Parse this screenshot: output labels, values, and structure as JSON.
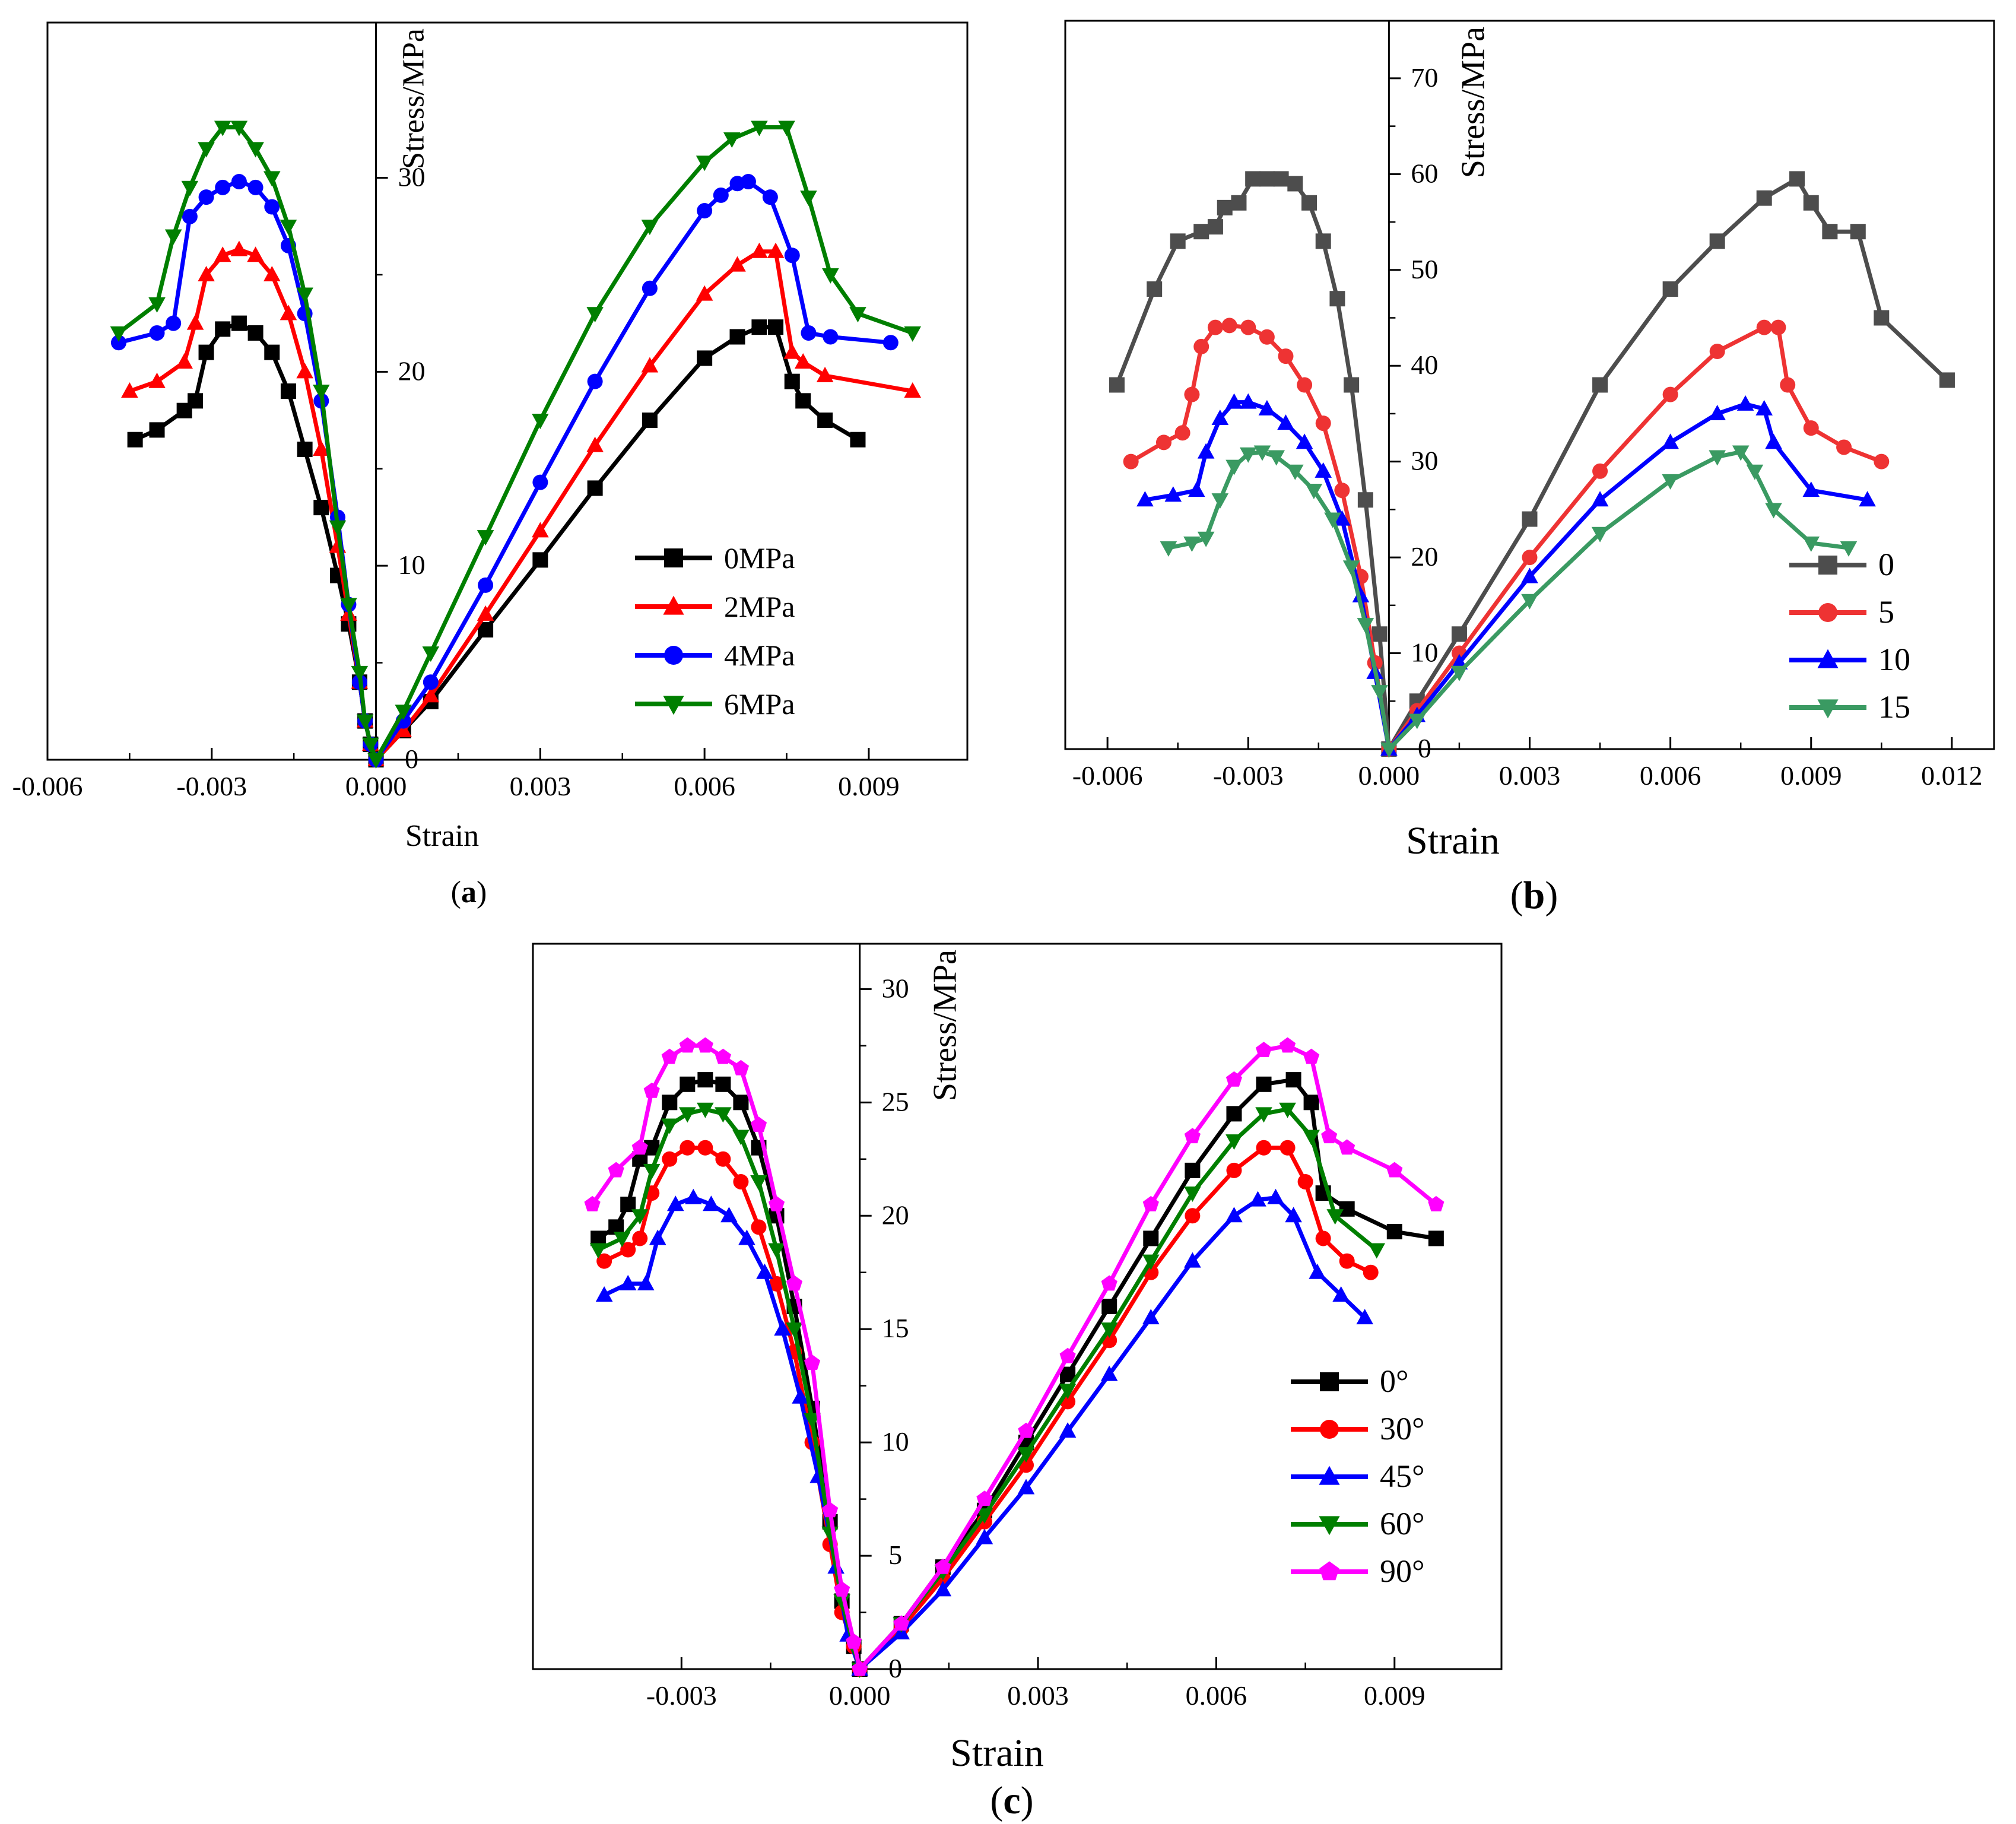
{
  "chart_data": [
    {
      "id": "a",
      "type": "line",
      "panel_label": "a",
      "xlabel": "Strain",
      "ylabel": "Stress/MPa",
      "xlim": [
        -0.006,
        0.0108
      ],
      "ylim": [
        0,
        38
      ],
      "x_ticks": [
        -0.006,
        -0.003,
        0.0,
        0.003,
        0.006,
        0.009
      ],
      "x_tick_labels": [
        "-0.006",
        "-0.003",
        "0.000",
        "0.003",
        "0.006",
        "0.009"
      ],
      "y_ticks": [
        0,
        10,
        20,
        30
      ],
      "y_tick_labels": [
        "0",
        "10",
        "20",
        "30"
      ],
      "legend_position": "center-right",
      "series": [
        {
          "name": "0MPa",
          "color": "#000000",
          "marker": "square",
          "x": [
            -0.0044,
            -0.004,
            -0.0035,
            -0.0033,
            -0.0031,
            -0.0028,
            -0.0025,
            -0.0022,
            -0.0019,
            -0.0016,
            -0.0013,
            -0.001,
            -0.0007,
            -0.0005,
            -0.0003,
            -0.0002,
            -0.0001,
            0.0,
            0.0005,
            0.001,
            0.002,
            0.003,
            0.004,
            0.005,
            0.006,
            0.0066,
            0.007,
            0.0073,
            0.0076,
            0.0078,
            0.0082,
            0.0088
          ],
          "y": [
            16.5,
            17.0,
            18.0,
            18.5,
            21.0,
            22.2,
            22.5,
            22.0,
            21.0,
            19.0,
            16.0,
            13.0,
            9.5,
            7.0,
            4.0,
            2.0,
            0.8,
            0.0,
            1.5,
            3.0,
            6.7,
            10.3,
            14.0,
            17.5,
            20.7,
            21.8,
            22.3,
            22.3,
            19.5,
            18.5,
            17.5,
            16.5
          ]
        },
        {
          "name": "2MPa",
          "color": "#ff0000",
          "marker": "triangle-up",
          "x": [
            -0.0045,
            -0.004,
            -0.0035,
            -0.0033,
            -0.0031,
            -0.0028,
            -0.0025,
            -0.0022,
            -0.0019,
            -0.0016,
            -0.0013,
            -0.001,
            -0.0007,
            -0.0005,
            -0.0003,
            -0.0002,
            -0.0001,
            0.0,
            0.0005,
            0.001,
            0.002,
            0.003,
            0.004,
            0.005,
            0.006,
            0.0066,
            0.007,
            0.0073,
            0.0076,
            0.0078,
            0.0082,
            0.0098
          ],
          "y": [
            19.0,
            19.5,
            20.5,
            22.5,
            25.0,
            26.0,
            26.3,
            26.0,
            25.0,
            23.0,
            20.0,
            16.0,
            11.0,
            7.5,
            4.0,
            2.0,
            0.8,
            0.0,
            1.5,
            3.3,
            7.5,
            11.8,
            16.2,
            20.3,
            24.0,
            25.5,
            26.2,
            26.2,
            21.0,
            20.5,
            19.8,
            19.0
          ]
        },
        {
          "name": "4MPa",
          "color": "#0000ff",
          "marker": "circle",
          "x": [
            -0.0047,
            -0.004,
            -0.0037,
            -0.0034,
            -0.0031,
            -0.0028,
            -0.0025,
            -0.0022,
            -0.0019,
            -0.0016,
            -0.0013,
            -0.001,
            -0.0007,
            -0.0005,
            -0.0003,
            -0.0002,
            -0.0001,
            0.0,
            0.0005,
            0.001,
            0.002,
            0.003,
            0.004,
            0.005,
            0.006,
            0.0063,
            0.0066,
            0.0068,
            0.0072,
            0.0076,
            0.0079,
            0.0083,
            0.0094
          ],
          "y": [
            21.5,
            22.0,
            22.5,
            28.0,
            29.0,
            29.5,
            29.8,
            29.5,
            28.5,
            26.5,
            23.0,
            18.5,
            12.5,
            8.0,
            4.0,
            2.0,
            0.8,
            0.0,
            2.0,
            4.0,
            9.0,
            14.3,
            19.5,
            24.3,
            28.3,
            29.1,
            29.7,
            29.8,
            29.0,
            26.0,
            22.0,
            21.8,
            21.5
          ]
        },
        {
          "name": "6MPa",
          "color": "#007f00",
          "marker": "triangle-down",
          "x": [
            -0.0047,
            -0.004,
            -0.0037,
            -0.0034,
            -0.0031,
            -0.0028,
            -0.0025,
            -0.0022,
            -0.0019,
            -0.0016,
            -0.0013,
            -0.001,
            -0.0007,
            -0.0005,
            -0.0003,
            -0.0002,
            -0.0001,
            0.0,
            0.0005,
            0.001,
            0.002,
            0.003,
            0.004,
            0.005,
            0.006,
            0.0065,
            0.007,
            0.0075,
            0.0079,
            0.0083,
            0.0088,
            0.0098
          ],
          "y": [
            22.0,
            23.5,
            27.0,
            29.5,
            31.5,
            32.6,
            32.6,
            31.5,
            30.0,
            27.5,
            24.0,
            19.0,
            12.0,
            8.0,
            4.5,
            2.0,
            0.8,
            0.0,
            2.5,
            5.5,
            11.5,
            17.5,
            23.0,
            27.5,
            30.8,
            32.0,
            32.6,
            32.6,
            29.0,
            25.0,
            23.0,
            22.0
          ]
        }
      ]
    },
    {
      "id": "b",
      "type": "line",
      "panel_label": "b",
      "xlabel": "Strain",
      "ylabel": "Stress/MPa",
      "xlim": [
        -0.0069,
        0.0129
      ],
      "ylim": [
        0,
        76
      ],
      "x_ticks": [
        -0.006,
        -0.003,
        0.0,
        0.003,
        0.006,
        0.009,
        0.012
      ],
      "x_tick_labels": [
        "-0.006",
        "-0.003",
        "0.000",
        "0.003",
        "0.006",
        "0.009",
        "0.012"
      ],
      "y_ticks": [
        0,
        10,
        20,
        30,
        40,
        50,
        60,
        70
      ],
      "y_tick_labels": [
        "0",
        "10",
        "20",
        "30",
        "40",
        "50",
        "60",
        "70"
      ],
      "legend_position": "bottom-right",
      "series": [
        {
          "name": "0",
          "color": "#4d4d4d",
          "marker": "square",
          "x": [
            -0.0058,
            -0.005,
            -0.0045,
            -0.004,
            -0.0037,
            -0.0035,
            -0.0032,
            -0.0029,
            -0.0026,
            -0.0023,
            -0.002,
            -0.0017,
            -0.0014,
            -0.0011,
            -0.0008,
            -0.0005,
            -0.0002,
            0.0,
            0.0006,
            0.0015,
            0.003,
            0.0045,
            0.006,
            0.007,
            0.008,
            0.0087,
            0.009,
            0.0094,
            0.01,
            0.0105,
            0.0119
          ],
          "y": [
            38.0,
            48.0,
            53.0,
            54.0,
            54.5,
            56.5,
            57.0,
            59.5,
            59.5,
            59.5,
            59.0,
            57.0,
            53.0,
            47.0,
            38.0,
            26.0,
            12.0,
            0.0,
            5.0,
            12.0,
            24.0,
            38.0,
            48.0,
            53.0,
            57.5,
            59.5,
            57.0,
            54.0,
            54.0,
            45.0,
            38.5
          ]
        },
        {
          "name": "5",
          "color": "#ee3333",
          "marker": "circle",
          "x": [
            -0.0055,
            -0.0048,
            -0.0044,
            -0.0042,
            -0.004,
            -0.0037,
            -0.0034,
            -0.003,
            -0.0026,
            -0.0022,
            -0.0018,
            -0.0014,
            -0.001,
            -0.0006,
            -0.0003,
            0.0,
            0.0006,
            0.0015,
            0.003,
            0.0045,
            0.006,
            0.007,
            0.008,
            0.0083,
            0.0085,
            0.009,
            0.0097,
            0.0105
          ],
          "y": [
            30.0,
            32.0,
            33.0,
            37.0,
            42.0,
            44.0,
            44.2,
            44.0,
            43.0,
            41.0,
            38.0,
            34.0,
            27.0,
            18.0,
            9.0,
            0.0,
            4.0,
            10.0,
            20.0,
            29.0,
            37.0,
            41.5,
            44.0,
            44.0,
            38.0,
            33.5,
            31.5,
            30.0
          ]
        },
        {
          "name": "10",
          "color": "#0000ff",
          "marker": "triangle-up",
          "x": [
            -0.0052,
            -0.0046,
            -0.0041,
            -0.0039,
            -0.0036,
            -0.0033,
            -0.003,
            -0.0026,
            -0.0022,
            -0.0018,
            -0.0014,
            -0.001,
            -0.0006,
            -0.0003,
            0.0,
            0.0006,
            0.0015,
            0.003,
            0.0045,
            0.006,
            0.007,
            0.0076,
            0.008,
            0.0082,
            0.009,
            0.0102
          ],
          "y": [
            26.0,
            26.5,
            27.0,
            31.0,
            34.5,
            36.2,
            36.2,
            35.5,
            34.0,
            32.0,
            29.0,
            24.0,
            16.0,
            8.0,
            0.0,
            3.5,
            9.0,
            18.0,
            26.0,
            32.0,
            35.0,
            36.0,
            35.5,
            32.0,
            27.0,
            26.0
          ]
        },
        {
          "name": "15",
          "color": "#3a9a62",
          "marker": "triangle-down",
          "x": [
            -0.0047,
            -0.0042,
            -0.0039,
            -0.0036,
            -0.0033,
            -0.003,
            -0.0027,
            -0.0024,
            -0.002,
            -0.0016,
            -0.0012,
            -0.0008,
            -0.0005,
            -0.0002,
            0.0,
            0.0006,
            0.0015,
            0.003,
            0.0045,
            0.006,
            0.007,
            0.0075,
            0.0078,
            0.0082,
            0.009,
            0.0098
          ],
          "y": [
            21.0,
            21.5,
            22.0,
            26.0,
            29.5,
            30.8,
            31.0,
            30.5,
            29.0,
            27.0,
            24.0,
            19.0,
            13.0,
            6.0,
            0.0,
            3.0,
            8.0,
            15.5,
            22.5,
            28.0,
            30.5,
            31.0,
            29.0,
            25.0,
            21.5,
            21.0
          ]
        }
      ]
    },
    {
      "id": "c",
      "type": "line",
      "panel_label": "c",
      "xlabel": "Strain",
      "ylabel": "Stress/MPa",
      "xlim": [
        -0.0055,
        0.0108
      ],
      "ylim": [
        0,
        32
      ],
      "x_ticks": [
        -0.003,
        0.0,
        0.003,
        0.006,
        0.009
      ],
      "x_tick_labels": [
        "-0.003",
        "0.000",
        "0.003",
        "0.006",
        "0.009"
      ],
      "y_ticks": [
        0,
        5,
        10,
        15,
        20,
        25,
        30
      ],
      "y_tick_labels": [
        "0",
        "5",
        "10",
        "15",
        "20",
        "25",
        "30"
      ],
      "legend_position": "bottom-right",
      "series": [
        {
          "name": "0°",
          "color": "#000000",
          "marker": "square",
          "x": [
            -0.0044,
            -0.0041,
            -0.0039,
            -0.0037,
            -0.0035,
            -0.0032,
            -0.0029,
            -0.0026,
            -0.0023,
            -0.002,
            -0.0017,
            -0.0014,
            -0.0011,
            -0.0008,
            -0.0005,
            -0.0003,
            -0.0001,
            0.0,
            0.0007,
            0.0014,
            0.0021,
            0.0028,
            0.0035,
            0.0042,
            0.0049,
            0.0056,
            0.0063,
            0.0068,
            0.0073,
            0.0076,
            0.0078,
            0.0082,
            0.009,
            0.0097
          ],
          "y": [
            19.0,
            19.5,
            20.5,
            22.5,
            23.0,
            25.0,
            25.8,
            26.0,
            25.8,
            25.0,
            23.0,
            20.0,
            16.0,
            11.5,
            6.5,
            3.0,
            1.0,
            0.0,
            2.0,
            4.5,
            7.0,
            10.0,
            13.0,
            16.0,
            19.0,
            22.0,
            24.5,
            25.8,
            26.0,
            25.0,
            21.0,
            20.3,
            19.3,
            19.0
          ]
        },
        {
          "name": "30°",
          "color": "#ff0000",
          "marker": "circle",
          "x": [
            -0.0043,
            -0.0039,
            -0.0037,
            -0.0035,
            -0.0032,
            -0.0029,
            -0.0026,
            -0.0023,
            -0.002,
            -0.0017,
            -0.0014,
            -0.0011,
            -0.0008,
            -0.0005,
            -0.0003,
            -0.0001,
            0.0,
            0.0007,
            0.0014,
            0.0021,
            0.0028,
            0.0035,
            0.0042,
            0.0049,
            0.0056,
            0.0063,
            0.0068,
            0.0072,
            0.0075,
            0.0078,
            0.0082,
            0.0086
          ],
          "y": [
            18.0,
            18.5,
            19.0,
            21.0,
            22.5,
            23.0,
            23.0,
            22.5,
            21.5,
            19.5,
            17.0,
            14.0,
            10.0,
            5.5,
            2.5,
            1.0,
            0.0,
            1.8,
            4.0,
            6.5,
            9.0,
            11.8,
            14.5,
            17.5,
            20.0,
            22.0,
            23.0,
            23.0,
            21.5,
            19.0,
            18.0,
            17.5
          ]
        },
        {
          "name": "45°",
          "color": "#0000ff",
          "marker": "triangle-up",
          "x": [
            -0.0043,
            -0.0039,
            -0.0036,
            -0.0034,
            -0.0031,
            -0.0028,
            -0.0025,
            -0.0022,
            -0.0019,
            -0.0016,
            -0.0013,
            -0.001,
            -0.0007,
            -0.0004,
            -0.0002,
            0.0,
            0.0007,
            0.0014,
            0.0021,
            0.0028,
            0.0035,
            0.0042,
            0.0049,
            0.0056,
            0.0063,
            0.0067,
            0.007,
            0.0073,
            0.0077,
            0.0081,
            0.0085
          ],
          "y": [
            16.5,
            17.0,
            17.0,
            19.0,
            20.5,
            20.8,
            20.5,
            20.0,
            19.0,
            17.5,
            15.0,
            12.0,
            8.5,
            4.5,
            1.5,
            0.0,
            1.6,
            3.5,
            5.8,
            8.0,
            10.5,
            13.0,
            15.5,
            18.0,
            20.0,
            20.7,
            20.8,
            20.0,
            17.5,
            16.5,
            15.5
          ]
        },
        {
          "name": "60°",
          "color": "#007f00",
          "marker": "triangle-down",
          "x": [
            -0.0044,
            -0.004,
            -0.0037,
            -0.0035,
            -0.0032,
            -0.0029,
            -0.0026,
            -0.0023,
            -0.002,
            -0.0017,
            -0.0014,
            -0.0011,
            -0.0008,
            -0.0005,
            -0.0003,
            -0.0001,
            0.0,
            0.0007,
            0.0014,
            0.0021,
            0.0028,
            0.0035,
            0.0042,
            0.0049,
            0.0056,
            0.0063,
            0.0068,
            0.0072,
            0.0076,
            0.008,
            0.0087
          ],
          "y": [
            18.5,
            19.0,
            20.0,
            22.0,
            24.0,
            24.5,
            24.7,
            24.5,
            23.5,
            21.5,
            18.5,
            15.0,
            11.0,
            6.0,
            3.0,
            1.0,
            0.0,
            2.0,
            4.3,
            6.8,
            9.5,
            12.3,
            15.0,
            18.0,
            21.0,
            23.3,
            24.5,
            24.7,
            23.5,
            20.0,
            18.5
          ]
        },
        {
          "name": "90°",
          "color": "#ff00ff",
          "marker": "pentagon",
          "x": [
            -0.0045,
            -0.0041,
            -0.0037,
            -0.0035,
            -0.0032,
            -0.0029,
            -0.0026,
            -0.0023,
            -0.002,
            -0.0017,
            -0.0014,
            -0.0011,
            -0.0008,
            -0.0005,
            -0.0003,
            -0.0001,
            0.0,
            0.0007,
            0.0014,
            0.0021,
            0.0028,
            0.0035,
            0.0042,
            0.0049,
            0.0056,
            0.0063,
            0.0068,
            0.0072,
            0.0076,
            0.0079,
            0.0082,
            0.009,
            0.0097
          ],
          "y": [
            20.5,
            22.0,
            23.0,
            25.5,
            27.0,
            27.5,
            27.5,
            27.0,
            26.5,
            24.0,
            20.5,
            17.0,
            13.5,
            7.0,
            3.5,
            1.2,
            0.0,
            2.0,
            4.5,
            7.5,
            10.5,
            13.8,
            17.0,
            20.5,
            23.5,
            26.0,
            27.3,
            27.5,
            27.0,
            23.5,
            23.0,
            22.0,
            20.5
          ]
        }
      ]
    }
  ]
}
